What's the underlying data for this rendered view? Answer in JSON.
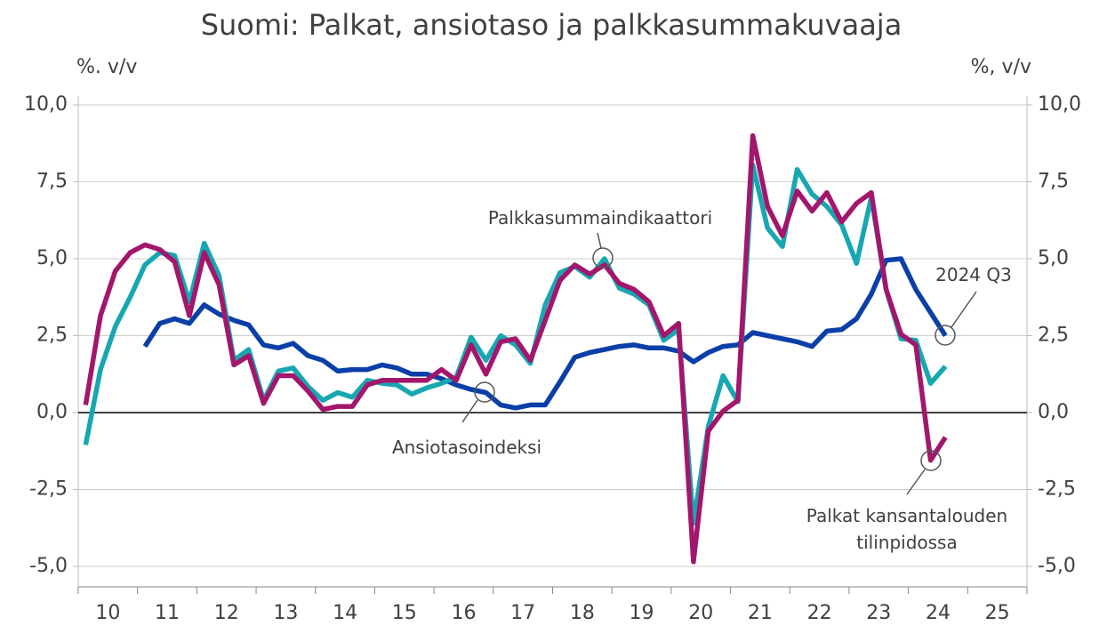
{
  "chart_data": {
    "type": "line",
    "title": "Suomi: Palkat, ansiotaso ja palkkasummakuvaaja",
    "y_label": "%. v/v",
    "y2_label": "%, v/v",
    "annotation": "2024 Q3",
    "x": [
      2010.125,
      2010.375,
      2010.625,
      2010.875,
      2011.125,
      2011.375,
      2011.625,
      2011.875,
      2012.125,
      2012.375,
      2012.625,
      2012.875,
      2013.125,
      2013.375,
      2013.625,
      2013.875,
      2014.125,
      2014.375,
      2014.625,
      2014.875,
      2015.125,
      2015.375,
      2015.625,
      2015.875,
      2016.125,
      2016.375,
      2016.625,
      2016.875,
      2017.125,
      2017.375,
      2017.625,
      2017.875,
      2018.125,
      2018.375,
      2018.625,
      2018.875,
      2019.125,
      2019.375,
      2019.625,
      2019.875,
      2020.125,
      2020.375,
      2020.625,
      2020.875,
      2021.125,
      2021.375,
      2021.625,
      2021.875,
      2022.125,
      2022.375,
      2022.625,
      2022.875,
      2023.125,
      2023.375,
      2023.625,
      2023.875,
      2024.125,
      2024.375,
      2024.625
    ],
    "xlim": [
      2010,
      2026
    ],
    "xticks": [
      {
        "value": 2010.5,
        "label": "10"
      },
      {
        "value": 2011.5,
        "label": "11"
      },
      {
        "value": 2012.5,
        "label": "12"
      },
      {
        "value": 2013.5,
        "label": "13"
      },
      {
        "value": 2014.5,
        "label": "14"
      },
      {
        "value": 2015.5,
        "label": "15"
      },
      {
        "value": 2016.5,
        "label": "16"
      },
      {
        "value": 2017.5,
        "label": "17"
      },
      {
        "value": 2018.5,
        "label": "18"
      },
      {
        "value": 2019.5,
        "label": "19"
      },
      {
        "value": 2020.5,
        "label": "20"
      },
      {
        "value": 2021.5,
        "label": "21"
      },
      {
        "value": 2022.5,
        "label": "22"
      },
      {
        "value": 2023.5,
        "label": "23"
      },
      {
        "value": 2024.5,
        "label": "24"
      },
      {
        "value": 2025.5,
        "label": "25"
      }
    ],
    "ylim": [
      -5,
      10
    ],
    "yticks": [
      {
        "value": -5,
        "label": "-5,0"
      },
      {
        "value": -2.5,
        "label": "-2,5"
      },
      {
        "value": 0,
        "label": "0,0"
      },
      {
        "value": 2.5,
        "label": "2,5"
      },
      {
        "value": 5,
        "label": "5,0"
      },
      {
        "value": 7.5,
        "label": "7,5"
      },
      {
        "value": 10,
        "label": "10,0"
      }
    ],
    "y2lim": [
      -5,
      10
    ],
    "y2ticks": [
      {
        "value": -5,
        "label": "-5,0"
      },
      {
        "value": -2.5,
        "label": "-2,5"
      },
      {
        "value": 0,
        "label": "0,0"
      },
      {
        "value": 2.5,
        "label": "2,5"
      },
      {
        "value": 5,
        "label": "5,0"
      },
      {
        "value": 7.5,
        "label": "7,5"
      },
      {
        "value": 10,
        "label": "10,0"
      }
    ],
    "grid": true,
    "series": [
      {
        "name": "Ansiotasoindeksi",
        "color": "#0b3fa8",
        "values": [
          null,
          null,
          null,
          null,
          2.15,
          2.9,
          3.05,
          2.9,
          3.5,
          3.2,
          3.0,
          2.85,
          2.2,
          2.1,
          2.25,
          1.85,
          1.7,
          1.35,
          1.4,
          1.4,
          1.55,
          1.45,
          1.25,
          1.25,
          1.1,
          0.9,
          0.75,
          0.65,
          0.25,
          0.15,
          0.25,
          0.25,
          1.0,
          1.8,
          1.95,
          2.05,
          2.15,
          2.2,
          2.1,
          2.1,
          2.0,
          1.65,
          1.95,
          2.15,
          2.2,
          2.6,
          2.5,
          2.4,
          2.3,
          2.15,
          2.65,
          2.7,
          3.05,
          3.85,
          4.95,
          5.0,
          4.0,
          3.25,
          2.5
        ]
      },
      {
        "name": "Palkkasummaindikaattori",
        "color": "#17a7b1",
        "values": [
          -1.05,
          1.4,
          2.8,
          3.75,
          4.8,
          5.2,
          5.1,
          3.6,
          5.5,
          4.45,
          1.7,
          2.05,
          0.4,
          1.35,
          1.45,
          0.85,
          0.4,
          0.65,
          0.5,
          1.05,
          0.95,
          0.9,
          0.6,
          0.8,
          0.95,
          1.15,
          2.45,
          1.7,
          2.5,
          2.2,
          1.6,
          3.5,
          4.55,
          4.75,
          4.4,
          5.0,
          4.05,
          3.85,
          3.5,
          2.35,
          2.7,
          -3.6,
          -0.45,
          1.2,
          0.35,
          8.05,
          6.0,
          5.4,
          7.9,
          7.1,
          6.7,
          6.1,
          4.85,
          7.0,
          4.0,
          2.4,
          2.35,
          0.95,
          1.5
        ]
      },
      {
        "name": "Palkat kansantalouden tilinpidossa",
        "color": "#a3166c",
        "values": [
          0.25,
          3.15,
          4.6,
          5.2,
          5.45,
          5.3,
          4.9,
          3.15,
          5.2,
          4.15,
          1.55,
          1.85,
          0.3,
          1.2,
          1.2,
          0.7,
          0.1,
          0.2,
          0.2,
          0.9,
          1.05,
          1.05,
          1.05,
          1.05,
          1.4,
          1.05,
          2.2,
          1.25,
          2.3,
          2.4,
          1.7,
          3.0,
          4.3,
          4.8,
          4.5,
          4.8,
          4.2,
          4.0,
          3.6,
          2.5,
          2.9,
          -4.85,
          -0.6,
          0.05,
          0.4,
          9.0,
          6.7,
          5.75,
          7.2,
          6.55,
          7.15,
          6.2,
          6.8,
          7.15,
          4.0,
          2.55,
          2.2,
          -1.55,
          -0.8
        ]
      }
    ]
  }
}
